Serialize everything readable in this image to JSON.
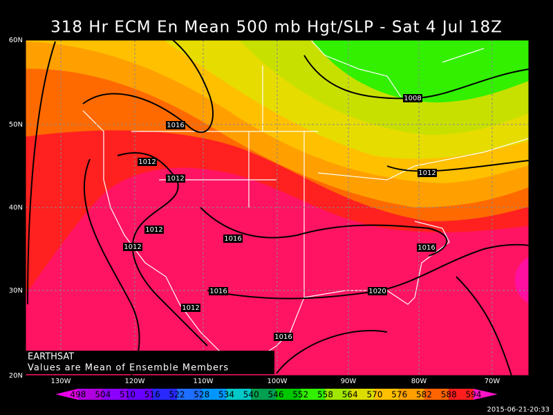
{
  "header": {
    "title": "318 Hr ECM En Mean 500 mb Hgt/SLP - Sat 4 Jul 18Z"
  },
  "map": {
    "lat_labels": [
      "60N",
      "50N",
      "40N",
      "30N",
      "20N"
    ],
    "lon_labels": [
      "130W",
      "120W",
      "110W",
      "100W",
      "90W",
      "80W",
      "70W"
    ],
    "isobar_labels": [
      "1008",
      "1016",
      "1012",
      "1012",
      "1012",
      "1012",
      "1016",
      "1012",
      "1016",
      "1016",
      "1020",
      "1012",
      "1016"
    ]
  },
  "footer": {
    "source": "EARTHSAT",
    "note": "Values are Mean of Ensemble Members",
    "timestamp": "2015-06-21-20:33"
  },
  "colorbar": {
    "labels": [
      498,
      504,
      510,
      516,
      522,
      528,
      534,
      540,
      546,
      552,
      558,
      564,
      570,
      576,
      582,
      588,
      594
    ],
    "colors": [
      "#e800e8",
      "#b000e0",
      "#8c00ff",
      "#6a00ff",
      "#2828ff",
      "#1e6eff",
      "#0096ff",
      "#00c8c8",
      "#00a050",
      "#00c800",
      "#32f000",
      "#a0e600",
      "#dcdc00",
      "#ffc000",
      "#ffa000",
      "#ff6400",
      "#ff1e1e",
      "#ff1464",
      "#ff14c8"
    ]
  }
}
